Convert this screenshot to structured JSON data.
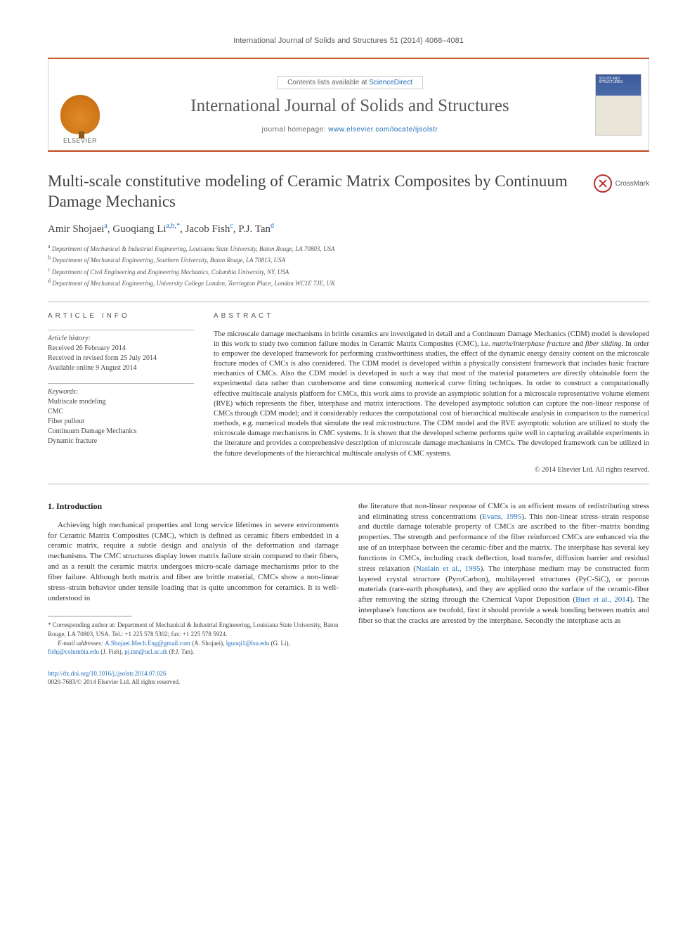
{
  "citation": {
    "journal": "International Journal of Solids and Structures",
    "vol_pages": "51 (2014) 4068–4081"
  },
  "header": {
    "contents_prefix": "Contents lists available at ",
    "contents_link": "ScienceDirect",
    "journal_name": "International Journal of Solids and Structures",
    "homepage_prefix": "journal homepage: ",
    "homepage_url": "www.elsevier.com/locate/ijsolstr",
    "publisher": "ELSEVIER",
    "cover_label": "SOLIDS AND STRUCTURES"
  },
  "article": {
    "title": "Multi-scale constitutive modeling of Ceramic Matrix Composites by Continuum Damage Mechanics",
    "crossmark": "CrossMark"
  },
  "authors": {
    "a1_name": "Amir Shojaei",
    "a1_sup": "a",
    "a2_name": "Guoqiang Li",
    "a2_sup": "a,b,",
    "a2_star": "*",
    "a3_name": "Jacob Fish",
    "a3_sup": "c",
    "a4_name": "P.J. Tan",
    "a4_sup": "d"
  },
  "affiliations": {
    "a": "Department of Mechanical & Industrial Engineering, Louisiana State University, Baton Rouge, LA 70803, USA",
    "b": "Department of Mechanical Engineering, Southern University, Baton Rouge, LA 70813, USA",
    "c": "Department of Civil Engineering and Engineering Mechanics, Columbia University, NY, USA",
    "d": "Department of Mechanical Engineering, University College London, Torrington Place, London WC1E 7JE, UK"
  },
  "article_info": {
    "label": "ARTICLE INFO",
    "history_heading": "Article history:",
    "received": "Received 26 February 2014",
    "revised": "Received in revised form 25 July 2014",
    "online": "Available online 9 August 2014",
    "keywords_heading": "Keywords:",
    "kw1": "Multiscale modeling",
    "kw2": "CMC",
    "kw3": "Fiber pullout",
    "kw4": "Continuum Damage Mechanics",
    "kw5": "Dynamic fracture"
  },
  "abstract": {
    "label": "ABSTRACT",
    "p1_a": "The microscale damage mechanisms in brittle ceramics are investigated in detail and a Continuum Damage Mechanics (CDM) model is developed in this work to study two common failure modes in Ceramic Matrix Composites (CMC), i.e. ",
    "p1_i1": "matrix/interphase fracture",
    "p1_b": " and ",
    "p1_i2": "fiber sliding",
    "p1_c": ". In order to empower the developed framework for performing crashworthiness studies, the effect of the dynamic energy density content on the microscale fracture modes of CMCs is also considered. The CDM model is developed within a physically consistent framework that includes basic fracture mechanics of CMCs. Also the CDM model is developed in such a way that most of the material parameters are directly obtainable form the experimental data rather than cumbersome and time consuming numerical curve fitting techniques. In order to construct a computationally effective multiscale analysis platform for CMCs, this work aims to provide an asymptotic solution for a microscale representative volume element (RVE) which represents the fiber, interphase and matrix interactions. The developed asymptotic solution can capture the non-linear response of CMCs through CDM model; and it considerably reduces the computational cost of hierarchical multiscale analysis in comparison to the numerical methods, e.g. numerical models that simulate the real microstructure. The CDM model and the RVE asymptotic solution are utilized to study the microscale damage mechanisms in CMC systems. It is shown that the developed scheme performs quite well in capturing available experiments in the literature and provides a comprehensive description of microscale damage mechanisms in CMCs. The developed framework can be utilized in the future developments of the hierarchical multiscale analysis of CMC systems.",
    "copyright": "© 2014 Elsevier Ltd. All rights reserved."
  },
  "body": {
    "section_heading": "1. Introduction",
    "left_p": "Achieving high mechanical properties and long service lifetimes in severe environments for Ceramic Matrix Composites (CMC), which is defined as ceramic fibers embedded in a ceramic matrix, require a subtle design and analysis of the deformation and damage mechanisms. The CMC structures display lower matrix failure strain compared to their fibers, and as a result the ceramic matrix undergoes micro-scale damage mechanisms prior to the fiber failure. Although both matrix and fiber are brittle material, CMCs show a non-linear stress–strain behavior under tensile loading that is quite uncommon for ceramics. It is well-understood in",
    "right_p1_a": "the literature that non-linear response of CMCs is an efficient means of redistributing stress and eliminating stress concentrations (",
    "right_p1_ref1": "Evans, 1995",
    "right_p1_b": "). This non-linear stress–strain response and ductile damage tolerable property of CMCs are ascribed to the fiber–matrix bonding properties. The strength and performance of the fiber reinforced CMCs are enhanced via the use of an interphase between the ceramic-fiber and the matrix. The interphase has several key functions in CMCs, including crack deflection, load transfer, diffusion barrier and residual stress relaxation (",
    "right_p1_ref2": "Naslain et al., 1995",
    "right_p1_c": "). The interphase medium may be constructed form layered crystal structure (PyroCarbon), multilayered structures (PyC-SiC), or porous materials (rare-earth phosphates), and they are applied onto the surface of the ceramic-fiber after removing the sizing through the Chemical Vapor Deposition (",
    "right_p1_ref3": "Buet et al., 2014",
    "right_p1_d": "). The interphase's functions are twofold, first it should provide a weak bonding between matrix and fiber so that the cracks are arrested by the interphase. Secondly the interphase acts as"
  },
  "footnotes": {
    "corr_star": "*",
    "corr_text": " Corresponding author at: Department of Mechanical & Industrial Engineering, Louisiana State University, Baton Rouge, LA 70803, USA. Tel.: +1 225 578 5302; fax: +1 225 578 5924.",
    "email_label": "E-mail addresses: ",
    "e1": "A.Shojaei.Mech.Eng@gmail.com",
    "e1_who": " (A. Shojaei), ",
    "e2": "lguoqi1@lsu.edu",
    "e2_who": " (G. Li), ",
    "e3": "fishj@columbia.edu",
    "e3_who": " (J. Fish), ",
    "e4": "pj.tan@ucl.ac.uk",
    "e4_who": " (P.J. Tan)."
  },
  "doi": {
    "url": "http://dx.doi.org/10.1016/j.ijsolstr.2014.07.026",
    "issn_line": "0020-7683/© 2014 Elsevier Ltd. All rights reserved."
  },
  "colors": {
    "rule": "#c8572e",
    "link": "#1e6bb8",
    "text": "#333333"
  }
}
